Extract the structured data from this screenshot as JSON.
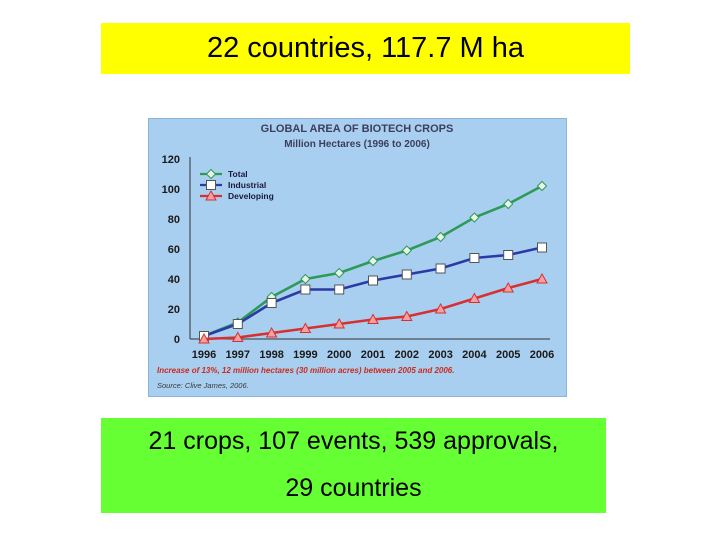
{
  "top_banner": {
    "text": "22 countries, 117.7 M ha",
    "color": "#ffff00"
  },
  "bottom_banner": {
    "line1": "21 crops, 107 events, 539 approvals,",
    "line2": "29 countries",
    "color": "#66ff33"
  },
  "chart_data": {
    "type": "line",
    "title": "GLOBAL AREA OF BIOTECH CROPS",
    "subtitle": "Million Hectares (1996 to 2006)",
    "x": [
      "1996",
      "1997",
      "1998",
      "1999",
      "2000",
      "2001",
      "2002",
      "2003",
      "2004",
      "2005",
      "2006"
    ],
    "ylim": [
      0,
      120
    ],
    "yticks": [
      0,
      20,
      40,
      60,
      80,
      100,
      120
    ],
    "grid": false,
    "legend_position": "top-left",
    "series": [
      {
        "name": "Total",
        "values": [
          2,
          11,
          28,
          40,
          44,
          52,
          59,
          68,
          81,
          90,
          102
        ],
        "color": "#2e9a57",
        "marker": "diamond"
      },
      {
        "name": "Industrial",
        "values": [
          2,
          10,
          24,
          33,
          33,
          39,
          43,
          47,
          54,
          56,
          61
        ],
        "color": "#2b3aa6",
        "marker": "square"
      },
      {
        "name": "Developing",
        "values": [
          0,
          1,
          4,
          7,
          10,
          13,
          15,
          20,
          27,
          34,
          40
        ],
        "color": "#d63030",
        "marker": "triangle"
      }
    ],
    "annotation": "Increase of 13%, 12 million hectares (30 million acres) between 2005 and 2006.",
    "source": "Source: Clive James, 2006.",
    "background": "#a9cff0"
  }
}
